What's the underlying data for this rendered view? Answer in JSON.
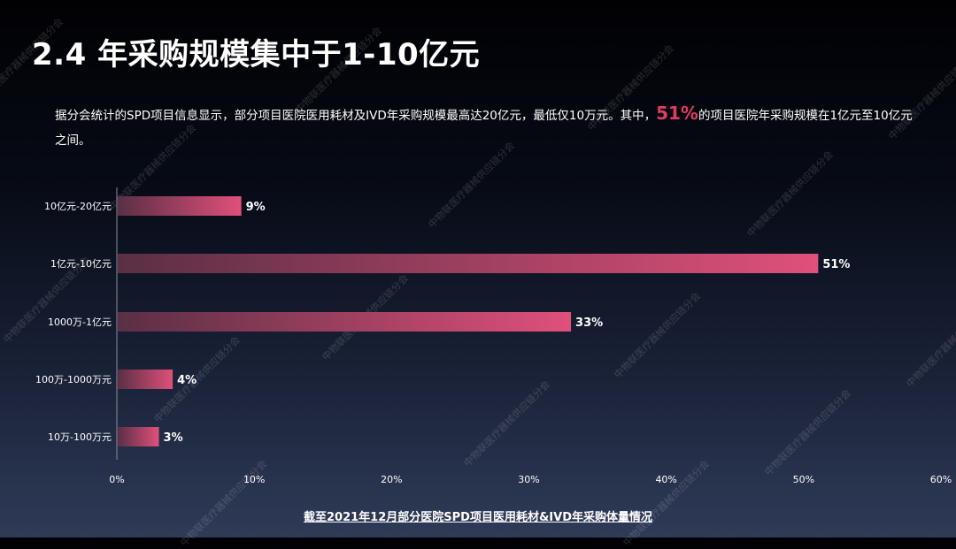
{
  "title": "2.4 年采购规模集中于1-10亿元",
  "description": {
    "before": "据分会统计的SPD项目信息显示，部分项目医院医用耗材及IVD年采购规模最高达20亿元，最低仅10万元。其中，",
    "highlight": "51%",
    "after": "的项目医院年采购规模在1亿元至10亿元之间。"
  },
  "watermark_text": "中物联医疗器械供应链分会",
  "caption": "截至2021年12月部分医院SPD项目医用耗材&IVD年采购体量情况",
  "colors": {
    "bar_start": "#5a2f45",
    "bar_end": "#e0507a",
    "highlight": "#e23d63"
  },
  "chart_data": {
    "type": "bar",
    "orientation": "horizontal",
    "categories": [
      "10亿元-20亿元",
      "1亿元-10亿元",
      "1000万-1亿元",
      "100万-1000万元",
      "10万-100万元"
    ],
    "values": [
      9,
      51,
      33,
      4,
      3
    ],
    "value_labels": [
      "9%",
      "51%",
      "33%",
      "4%",
      "3%"
    ],
    "xlim": [
      0,
      60
    ],
    "xticks": [
      0,
      10,
      20,
      30,
      40,
      50,
      60
    ],
    "xtick_labels": [
      "0%",
      "10%",
      "20%",
      "30%",
      "40%",
      "50%",
      "60%"
    ],
    "grid": false
  }
}
